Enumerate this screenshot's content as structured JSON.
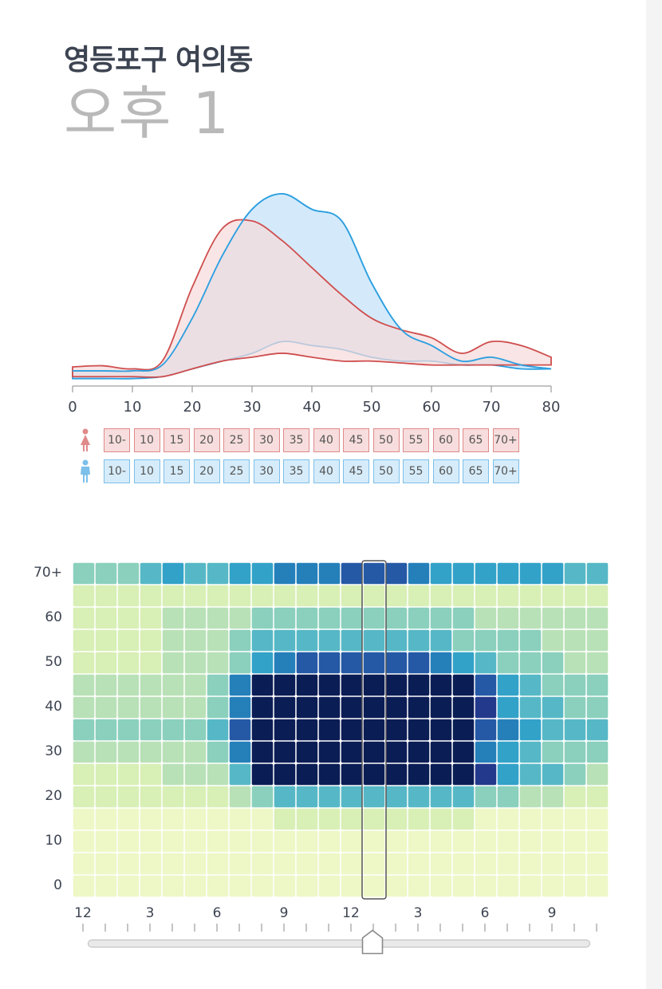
{
  "header": {
    "location": "영등포구 여의동",
    "time_label": "오후 1"
  },
  "colors": {
    "female_stroke": "#cf4e4e",
    "female_fill": "#f6dada",
    "male_stroke": "#2ea0e0",
    "male_fill": "#cfe8f9",
    "overlap_fill": "#d3d3e0"
  },
  "legend": {
    "female_icon": "female-person-icon",
    "male_icon": "male-person-icon",
    "female_ages": [
      "10-",
      "10",
      "15",
      "20",
      "25",
      "30",
      "35",
      "40",
      "45",
      "50",
      "55",
      "60",
      "65",
      "70+"
    ],
    "male_ages": [
      "10-",
      "10",
      "15",
      "20",
      "25",
      "30",
      "35",
      "40",
      "45",
      "50",
      "55",
      "60",
      "65",
      "70+"
    ]
  },
  "chart_data": [
    {
      "type": "area",
      "title": "",
      "x": [
        0,
        5,
        10,
        15,
        20,
        25,
        30,
        35,
        40,
        45,
        50,
        55,
        60,
        65,
        70,
        75,
        80
      ],
      "x_ticks": [
        0,
        10,
        20,
        30,
        40,
        50,
        60,
        70,
        80
      ],
      "xlim": [
        0,
        80
      ],
      "ylim": [
        0,
        50
      ],
      "series": [
        {
          "name": "female",
          "values": [
            4.5,
            4.8,
            4,
            6,
            25,
            40,
            42,
            37,
            30,
            23,
            17,
            14,
            12,
            8,
            11,
            10,
            7
          ]
        },
        {
          "name": "male",
          "values": [
            3.5,
            3.5,
            3.5,
            5,
            17,
            33,
            45,
            49,
            45,
            42,
            26,
            14,
            10,
            6,
            7,
            5,
            4
          ]
        },
        {
          "name": "female-lower",
          "values": [
            2,
            2,
            2,
            2,
            4,
            6,
            7,
            8,
            7,
            6,
            6,
            5.5,
            5,
            5,
            5,
            5,
            5
          ]
        },
        {
          "name": "male-lower",
          "values": [
            1.5,
            1.5,
            1.5,
            2,
            4,
            6,
            8,
            11,
            10,
            9,
            7,
            6,
            6,
            5,
            5,
            4,
            4
          ]
        }
      ]
    },
    {
      "type": "heatmap",
      "title": "",
      "y_labels": [
        "0",
        "",
        "10",
        "",
        "20",
        "",
        "30",
        "",
        "40",
        "",
        "50",
        "",
        "60",
        "",
        "70+"
      ],
      "y_label_rows": [
        "70+",
        "",
        "60",
        "",
        "50",
        "",
        "40",
        "",
        "30",
        "",
        "20",
        "",
        "10",
        "",
        "0"
      ],
      "x_labels": [
        "12",
        "3",
        "6",
        "9",
        "12",
        "3",
        "6",
        "9"
      ],
      "selected_hour": 13,
      "rows_top_to_bottom": [
        [
          3,
          3,
          3,
          4,
          5,
          4,
          4,
          5,
          5,
          6,
          6,
          6,
          7,
          7,
          7,
          6,
          5,
          5,
          5,
          5,
          5,
          5,
          4,
          4
        ],
        [
          1,
          1,
          1,
          1,
          1,
          1,
          1,
          1,
          1,
          1,
          1,
          1,
          1,
          1,
          1,
          1,
          1,
          1,
          1,
          1,
          1,
          1,
          1,
          1
        ],
        [
          1,
          1,
          1,
          1,
          2,
          2,
          2,
          2,
          3,
          3,
          3,
          3,
          3,
          3,
          3,
          3,
          3,
          3,
          2,
          2,
          2,
          2,
          2,
          2
        ],
        [
          1,
          1,
          1,
          1,
          2,
          2,
          2,
          3,
          4,
          4,
          4,
          4,
          4,
          4,
          4,
          4,
          4,
          3,
          3,
          3,
          3,
          2,
          2,
          2
        ],
        [
          1,
          1,
          1,
          1,
          2,
          2,
          2,
          3,
          5,
          6,
          7,
          7,
          7,
          7,
          7,
          7,
          6,
          5,
          4,
          3,
          3,
          3,
          2,
          2
        ],
        [
          2,
          2,
          2,
          2,
          2,
          2,
          3,
          6,
          9,
          9,
          9,
          9,
          9,
          9,
          9,
          9,
          9,
          9,
          7,
          5,
          4,
          3,
          3,
          3
        ],
        [
          2,
          2,
          2,
          2,
          2,
          2,
          3,
          6,
          9,
          9,
          9,
          9,
          9,
          9,
          9,
          9,
          9,
          9,
          8,
          5,
          4,
          4,
          3,
          3
        ],
        [
          3,
          3,
          3,
          3,
          3,
          3,
          4,
          7,
          9,
          9,
          9,
          9,
          9,
          9,
          9,
          9,
          9,
          9,
          7,
          6,
          5,
          4,
          4,
          4
        ],
        [
          2,
          2,
          2,
          2,
          2,
          2,
          3,
          6,
          9,
          9,
          9,
          9,
          9,
          9,
          9,
          9,
          9,
          9,
          6,
          5,
          4,
          3,
          3,
          3
        ],
        [
          1,
          1,
          1,
          1,
          2,
          2,
          2,
          4,
          9,
          9,
          9,
          9,
          9,
          9,
          9,
          9,
          9,
          9,
          8,
          5,
          4,
          4,
          3,
          2
        ],
        [
          1,
          1,
          1,
          1,
          1,
          1,
          1,
          2,
          3,
          4,
          4,
          4,
          4,
          4,
          4,
          4,
          4,
          4,
          3,
          3,
          2,
          2,
          1,
          1
        ],
        [
          0,
          0,
          0,
          0,
          0,
          0,
          0,
          0,
          0,
          1,
          1,
          1,
          1,
          1,
          1,
          1,
          1,
          1,
          0,
          0,
          0,
          0,
          0,
          0
        ],
        [
          0,
          0,
          0,
          0,
          0,
          0,
          0,
          0,
          0,
          0,
          0,
          0,
          0,
          0,
          0,
          0,
          0,
          0,
          0,
          0,
          0,
          0,
          0,
          0
        ],
        [
          0,
          0,
          0,
          0,
          0,
          0,
          0,
          0,
          0,
          0,
          0,
          0,
          0,
          0,
          0,
          0,
          0,
          0,
          0,
          0,
          0,
          0,
          0,
          0
        ],
        [
          0,
          0,
          0,
          0,
          0,
          0,
          0,
          0,
          0,
          0,
          0,
          0,
          0,
          0,
          0,
          0,
          0,
          0,
          0,
          0,
          0,
          0,
          0,
          0
        ]
      ],
      "palette": [
        "#eef7c6",
        "#d8efb6",
        "#b9e1b7",
        "#8ad0bd",
        "#56b8c6",
        "#32a2c8",
        "#2580ba",
        "#2559a6",
        "#23398c",
        "#0b1d55"
      ]
    }
  ],
  "slider": {
    "label": "hour-slider",
    "value": 13,
    "min": 0,
    "max": 23
  }
}
